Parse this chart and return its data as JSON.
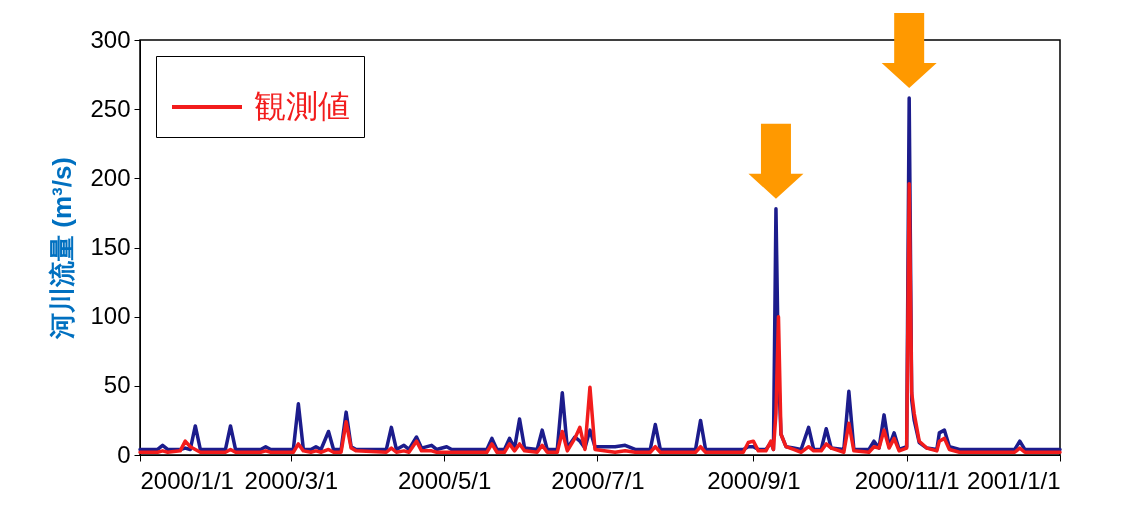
{
  "chart_data": {
    "type": "line",
    "ylabel": "河川流量 (m³/s)",
    "x": [
      "2000-01-01",
      "2000-01-08",
      "2000-01-10",
      "2000-01-12",
      "2000-01-17",
      "2000-01-19",
      "2000-01-21",
      "2000-01-23",
      "2000-01-25",
      "2000-02-04",
      "2000-02-06",
      "2000-02-08",
      "2000-02-18",
      "2000-02-20",
      "2000-02-22",
      "2000-03-02",
      "2000-03-04",
      "2000-03-06",
      "2000-03-09",
      "2000-03-11",
      "2000-03-13",
      "2000-03-16",
      "2000-03-18",
      "2000-03-21",
      "2000-03-23",
      "2000-03-25",
      "2000-03-27",
      "2000-04-08",
      "2000-04-10",
      "2000-04-12",
      "2000-04-15",
      "2000-04-17",
      "2000-04-20",
      "2000-04-22",
      "2000-04-26",
      "2000-04-28",
      "2000-05-02",
      "2000-05-04",
      "2000-05-18",
      "2000-05-20",
      "2000-05-22",
      "2000-05-25",
      "2000-05-27",
      "2000-05-29",
      "2000-05-31",
      "2000-06-02",
      "2000-06-07",
      "2000-06-09",
      "2000-06-11",
      "2000-06-15",
      "2000-06-17",
      "2000-06-19",
      "2000-06-22",
      "2000-06-24",
      "2000-06-26",
      "2000-06-28",
      "2000-06-30",
      "2000-07-08",
      "2000-07-12",
      "2000-07-16",
      "2000-07-22",
      "2000-07-24",
      "2000-07-26",
      "2000-08-09",
      "2000-08-11",
      "2000-08-13",
      "2000-08-28",
      "2000-08-30",
      "2000-09-01",
      "2000-09-03",
      "2000-09-06",
      "2000-09-08",
      "2000-09-09",
      "2000-09-10",
      "2000-09-11",
      "2000-09-12",
      "2000-09-14",
      "2000-09-17",
      "2000-09-20",
      "2000-09-23",
      "2000-09-25",
      "2000-09-28",
      "2000-09-30",
      "2000-10-02",
      "2000-10-07",
      "2000-10-09",
      "2000-10-11",
      "2000-10-17",
      "2000-10-19",
      "2000-10-21",
      "2000-10-23",
      "2000-10-25",
      "2000-10-27",
      "2000-10-29",
      "2000-11-01",
      "2000-11-02",
      "2000-11-03",
      "2000-11-04",
      "2000-11-06",
      "2000-11-09",
      "2000-11-13",
      "2000-11-14",
      "2000-11-16",
      "2000-11-18",
      "2000-11-22",
      "2000-12-14",
      "2000-12-16",
      "2000-12-18",
      "2001-01-01"
    ],
    "series": [
      {
        "color": "#1c1c8c",
        "values": [
          4,
          4,
          7,
          4,
          4,
          5,
          4,
          21,
          4,
          4,
          21,
          4,
          4,
          6,
          4,
          4,
          37,
          4,
          4,
          6,
          4,
          17,
          4,
          4,
          31,
          6,
          4,
          4,
          20,
          4,
          7,
          4,
          13,
          5,
          7,
          4,
          6,
          4,
          4,
          12,
          4,
          4,
          12,
          5,
          26,
          5,
          4,
          18,
          4,
          4,
          45,
          5,
          13,
          10,
          5,
          18,
          6,
          6,
          7,
          4,
          4,
          22,
          4,
          4,
          25,
          4,
          4,
          6,
          6,
          4,
          4,
          9,
          4,
          178,
          60,
          15,
          6,
          5,
          4,
          20,
          4,
          4,
          19,
          5,
          4,
          46,
          4,
          4,
          10,
          5,
          29,
          6,
          16,
          4,
          6,
          258,
          40,
          25,
          9,
          5,
          4,
          16,
          18,
          6,
          4,
          4,
          10,
          4,
          4
        ]
      },
      {
        "name": "観測値",
        "color": "#f21c1c",
        "values": [
          2,
          2,
          3,
          2,
          3,
          10,
          6,
          4,
          2,
          2,
          4,
          2,
          2,
          3,
          2,
          2,
          8,
          3,
          2,
          3,
          2,
          4,
          2,
          2,
          24,
          5,
          3,
          2,
          5,
          2,
          3,
          2,
          10,
          3,
          3,
          2,
          2,
          2,
          2,
          8,
          2,
          2,
          8,
          3,
          8,
          3,
          2,
          7,
          2,
          2,
          17,
          3,
          12,
          20,
          4,
          49,
          4,
          2,
          3,
          2,
          2,
          6,
          2,
          2,
          6,
          2,
          2,
          9,
          10,
          3,
          3,
          10,
          4,
          30,
          100,
          15,
          6,
          4,
          2,
          6,
          3,
          3,
          8,
          5,
          2,
          23,
          3,
          2,
          6,
          5,
          18,
          5,
          12,
          3,
          5,
          196,
          45,
          30,
          10,
          5,
          3,
          10,
          12,
          4,
          2,
          2,
          5,
          2,
          2
        ]
      }
    ],
    "xlim": [
      "2000-01-01",
      "2001-01-01"
    ],
    "xticks": [
      {
        "value": "2000-01-01",
        "label": "2000/1/1"
      },
      {
        "value": "2000-03-01",
        "label": "2000/3/1"
      },
      {
        "value": "2000-05-01",
        "label": "2000/5/1"
      },
      {
        "value": "2000-07-01",
        "label": "2000/7/1"
      },
      {
        "value": "2000-09-01",
        "label": "2000/9/1"
      },
      {
        "value": "2000-11-01",
        "label": "2000/11/1"
      },
      {
        "value": "2001-01-01",
        "label": "2001/1/1"
      }
    ],
    "ylim": [
      0,
      300
    ],
    "yticks": [
      0,
      50,
      100,
      150,
      200,
      250,
      300
    ],
    "grid": false,
    "legend": "top left",
    "marker": "none",
    "line_style": "solid"
  }
}
